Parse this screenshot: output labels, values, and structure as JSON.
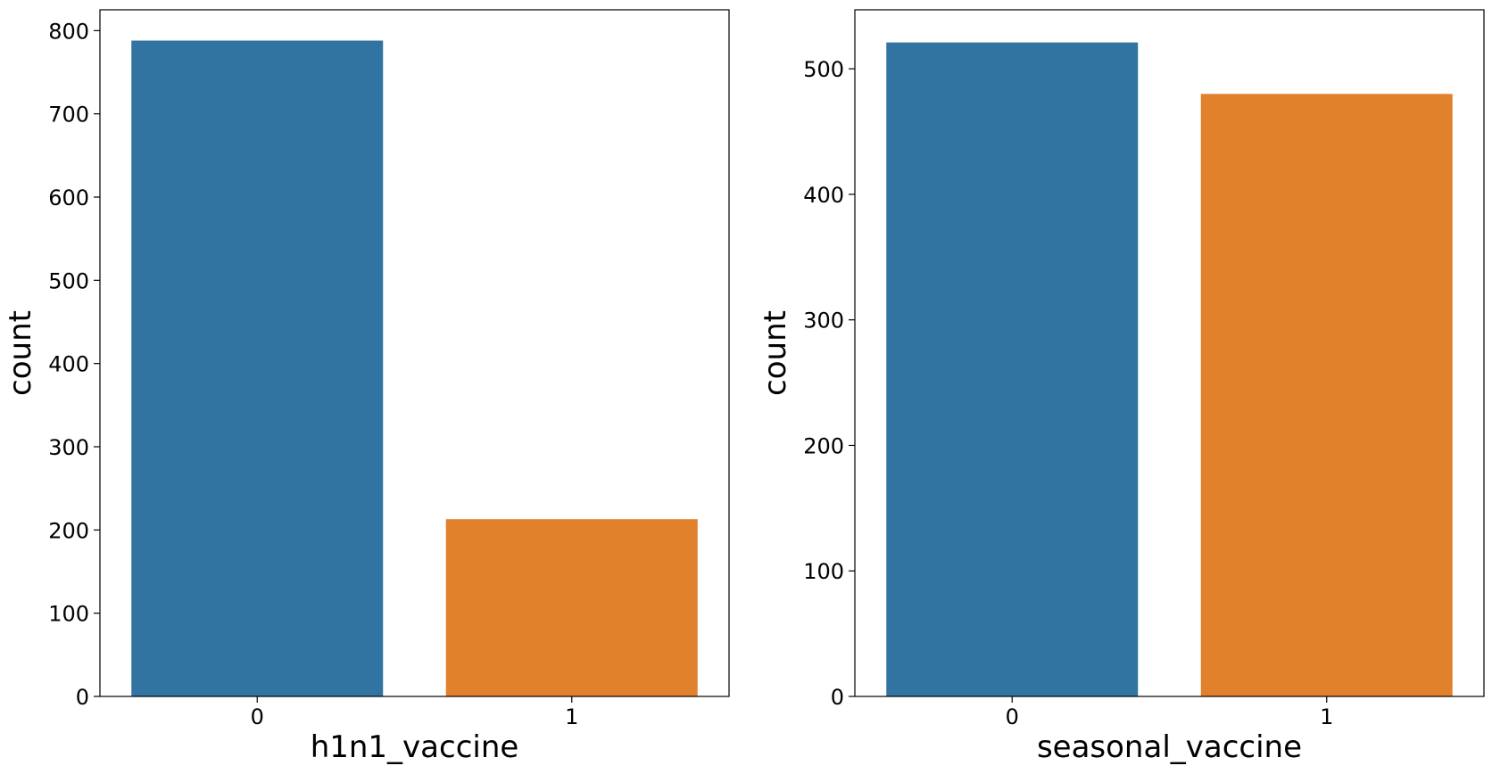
{
  "chart_data": [
    {
      "type": "bar",
      "categories": [
        "0",
        "1"
      ],
      "values": [
        788,
        213
      ],
      "colors": [
        "#3274a1",
        "#e1812c"
      ],
      "xlabel": "h1n1_vaccine",
      "ylabel": "count",
      "ylim": [
        0,
        825
      ],
      "yticks": [
        0,
        100,
        200,
        300,
        400,
        500,
        600,
        700,
        800
      ],
      "grid": false
    },
    {
      "type": "bar",
      "categories": [
        "0",
        "1"
      ],
      "values": [
        521,
        480
      ],
      "colors": [
        "#3274a1",
        "#e1812c"
      ],
      "xlabel": "seasonal_vaccine",
      "ylabel": "count",
      "ylim": [
        0,
        547
      ],
      "yticks": [
        0,
        100,
        200,
        300,
        400,
        500
      ],
      "grid": false
    }
  ]
}
